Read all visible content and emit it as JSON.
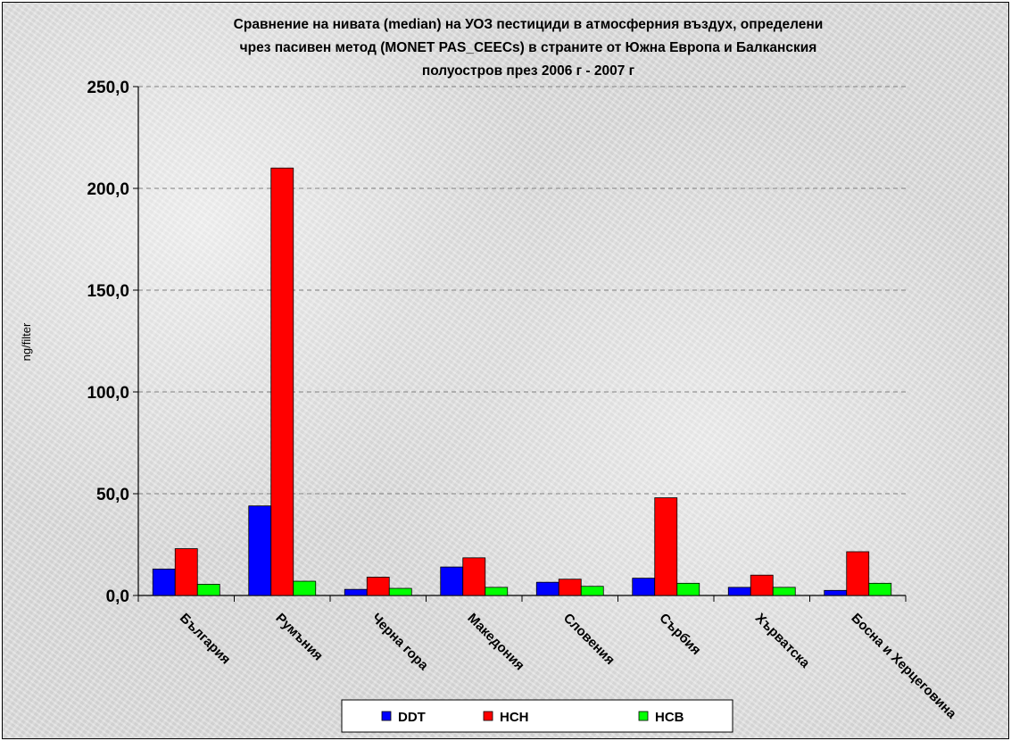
{
  "chart_data": {
    "type": "bar",
    "title_lines": [
      "Сравнение на нивата (median) на УОЗ пестициди в атмосферния въздух, определени",
      "чрез пасивен метод (MONET PAS_CEECs) в страните от Южна Европа и Балканския",
      "полуостров през 2006 г - 2007 г"
    ],
    "ylabel": "ng/filter",
    "xlabel": "",
    "ylim": [
      0,
      250
    ],
    "yticks": [
      "0,0",
      "50,0",
      "100,0",
      "150,0",
      "200,0",
      "250,0"
    ],
    "ytick_values": [
      0,
      50,
      100,
      150,
      200,
      250
    ],
    "grid": "horizontal-dashed",
    "legend_position": "bottom",
    "categories": [
      "България",
      "Румъния",
      "Черна гора",
      "Македония",
      "Словения",
      "Сърбия",
      "Хърватска",
      "Босна и Херцеговина"
    ],
    "series": [
      {
        "name": "DDT",
        "color": "#0000ff",
        "values": [
          13.0,
          44.0,
          3.0,
          14.0,
          6.5,
          8.5,
          4.0,
          2.5
        ]
      },
      {
        "name": "HCH",
        "color": "#ff0000",
        "values": [
          23.0,
          210.0,
          9.0,
          18.5,
          8.0,
          48.0,
          10.0,
          21.5
        ]
      },
      {
        "name": "HCB",
        "color": "#00ff00",
        "values": [
          5.5,
          7.0,
          3.5,
          4.0,
          4.5,
          6.0,
          4.0,
          6.0
        ]
      }
    ]
  }
}
